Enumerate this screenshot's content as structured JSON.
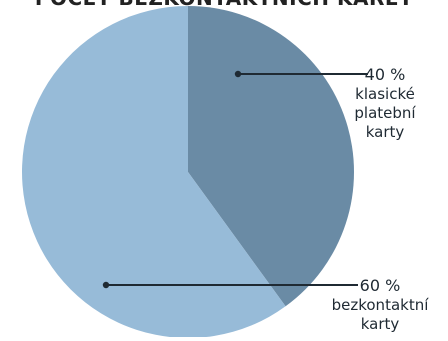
{
  "chart_data": {
    "type": "pie",
    "title": "POČET BEZKONTAKTNÍCH KARET",
    "slices": [
      {
        "value": 40,
        "value_label": "40 %",
        "label_lines": [
          "klasické",
          "platební",
          "karty"
        ],
        "color": "#6a8ba5"
      },
      {
        "value": 60,
        "value_label": "60 %",
        "label_lines": [
          "bezkontaktní",
          "karty"
        ],
        "color": "#97bbd8"
      }
    ],
    "legend": "none",
    "grid": false
  }
}
